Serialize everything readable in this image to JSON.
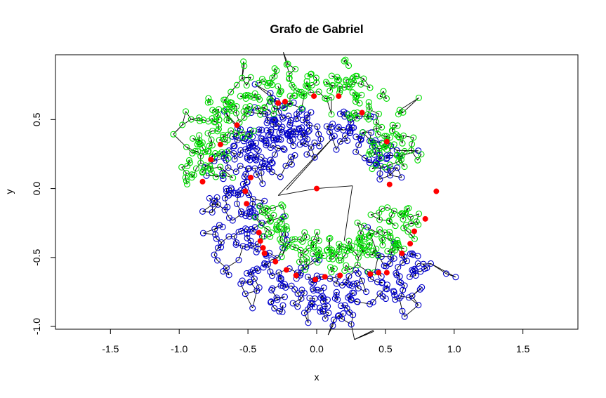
{
  "chart_data": {
    "type": "scatter",
    "title": "Grafo de Gabriel",
    "xlabel": "x",
    "ylabel": "y",
    "xlim": [
      -1.9,
      1.9
    ],
    "ylim": [
      -1.02,
      0.97
    ],
    "xticks": [
      "-1.5",
      "-1.0",
      "-0.5",
      "0.0",
      "0.5",
      "1.0",
      "1.5"
    ],
    "yticks": [
      "-1.0",
      "-0.5",
      "0.0",
      "0.5"
    ],
    "grid": false,
    "legend": "none",
    "series_colors": {
      "blue_ring": "#0000cc",
      "green_ring": "#00dd00",
      "red_points": "#ff0000",
      "edges": "#000000"
    },
    "red_points": [
      [
        -0.02,
        0.67
      ],
      [
        0.16,
        0.67
      ],
      [
        -0.28,
        0.62
      ],
      [
        -0.23,
        0.63
      ],
      [
        0.33,
        0.55
      ],
      [
        -0.58,
        0.46
      ],
      [
        -0.7,
        0.32
      ],
      [
        -0.77,
        0.21
      ],
      [
        0.51,
        0.34
      ],
      [
        -0.83,
        0.05
      ],
      [
        -0.48,
        0.08
      ],
      [
        -0.52,
        -0.02
      ],
      [
        0.0,
        0.0
      ],
      [
        0.53,
        0.03
      ],
      [
        0.87,
        -0.02
      ],
      [
        -0.51,
        -0.11
      ],
      [
        0.79,
        -0.22
      ],
      [
        0.71,
        -0.31
      ],
      [
        -0.42,
        -0.32
      ],
      [
        -0.41,
        -0.38
      ],
      [
        0.68,
        -0.4
      ],
      [
        -0.39,
        -0.43
      ],
      [
        0.62,
        -0.47
      ],
      [
        -0.38,
        -0.47
      ],
      [
        -0.3,
        -0.53
      ],
      [
        -0.22,
        -0.59
      ],
      [
        -0.15,
        -0.63
      ],
      [
        0.39,
        -0.62
      ],
      [
        0.45,
        -0.61
      ],
      [
        0.51,
        -0.61
      ],
      [
        0.06,
        -0.64
      ],
      [
        0.17,
        -0.63
      ],
      [
        -0.01,
        -0.66
      ]
    ]
  }
}
